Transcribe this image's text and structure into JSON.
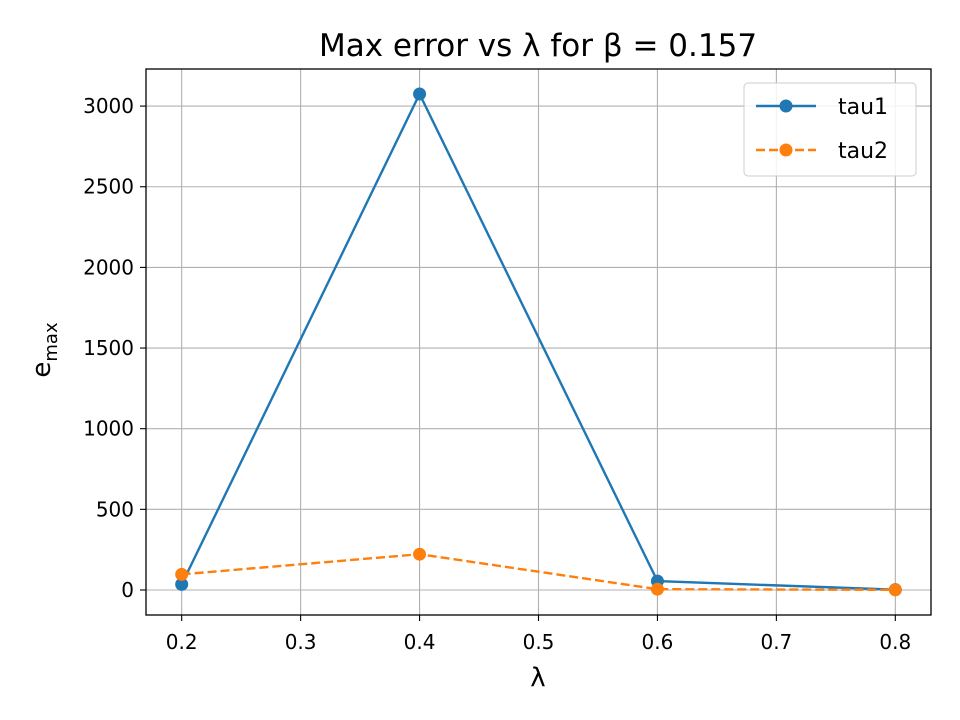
{
  "chart_data": {
    "type": "line",
    "title": "Max error vs λ for β = 0.157",
    "xlabel": "λ",
    "ylabel": "e",
    "ylabel_subscript": "max",
    "x": [
      0.2,
      0.4,
      0.6,
      0.8
    ],
    "xlim": [
      0.17,
      0.83
    ],
    "ylim": [
      -155,
      3230
    ],
    "xticks": [
      0.2,
      0.3,
      0.4,
      0.5,
      0.6,
      0.7,
      0.8
    ],
    "xtick_labels": [
      "0.2",
      "0.3",
      "0.4",
      "0.5",
      "0.6",
      "0.7",
      "0.8"
    ],
    "yticks": [
      0,
      500,
      1000,
      1500,
      2000,
      2500,
      3000
    ],
    "ytick_labels": [
      "0",
      "500",
      "1000",
      "1500",
      "2000",
      "2500",
      "3000"
    ],
    "grid": true,
    "legend_position": "top-right",
    "series": [
      {
        "name": "tau1",
        "values": [
          35,
          3075,
          55,
          2
        ],
        "color": "#1f77b4",
        "linestyle": "solid",
        "marker": "circle"
      },
      {
        "name": "tau2",
        "values": [
          97,
          222,
          5,
          1
        ],
        "color": "#ff7f0e",
        "linestyle": "dashed",
        "marker": "circle"
      }
    ]
  }
}
